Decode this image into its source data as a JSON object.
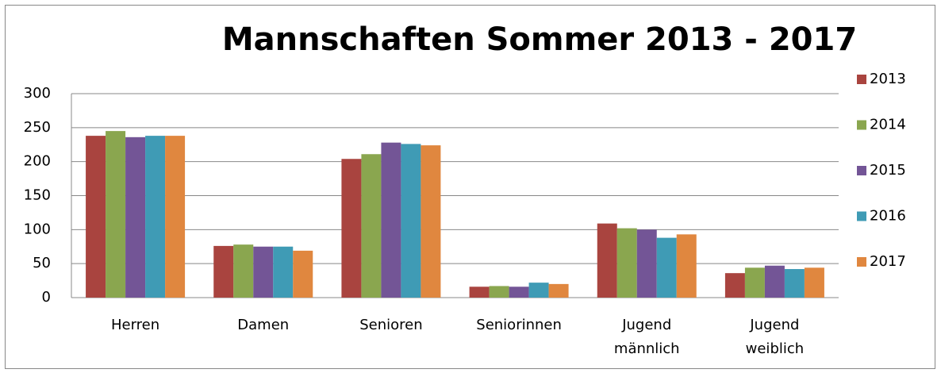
{
  "chart_data": {
    "type": "bar",
    "title": "Mannschaften Sommer 2013 - 2017",
    "categories": [
      "Herren",
      "Damen",
      "Senioren",
      "Seniorinnen",
      "Jugend männlich",
      "Jugend weiblich"
    ],
    "series": [
      {
        "name": "2013",
        "color": "#a9443f",
        "values": [
          238,
          76,
          204,
          16,
          109,
          36
        ]
      },
      {
        "name": "2014",
        "color": "#8aa64f",
        "values": [
          245,
          78,
          211,
          17,
          102,
          44
        ]
      },
      {
        "name": "2015",
        "color": "#735596",
        "values": [
          236,
          75,
          228,
          16,
          100,
          47
        ]
      },
      {
        "name": "2016",
        "color": "#3f9bb5",
        "values": [
          238,
          75,
          226,
          22,
          88,
          42
        ]
      },
      {
        "name": "2017",
        "color": "#e0873f",
        "values": [
          238,
          69,
          224,
          20,
          93,
          44
        ]
      }
    ],
    "ylim": [
      0,
      300
    ],
    "yticks": [
      0,
      50,
      100,
      150,
      200,
      250,
      300
    ],
    "grid": true,
    "legend": "right"
  }
}
